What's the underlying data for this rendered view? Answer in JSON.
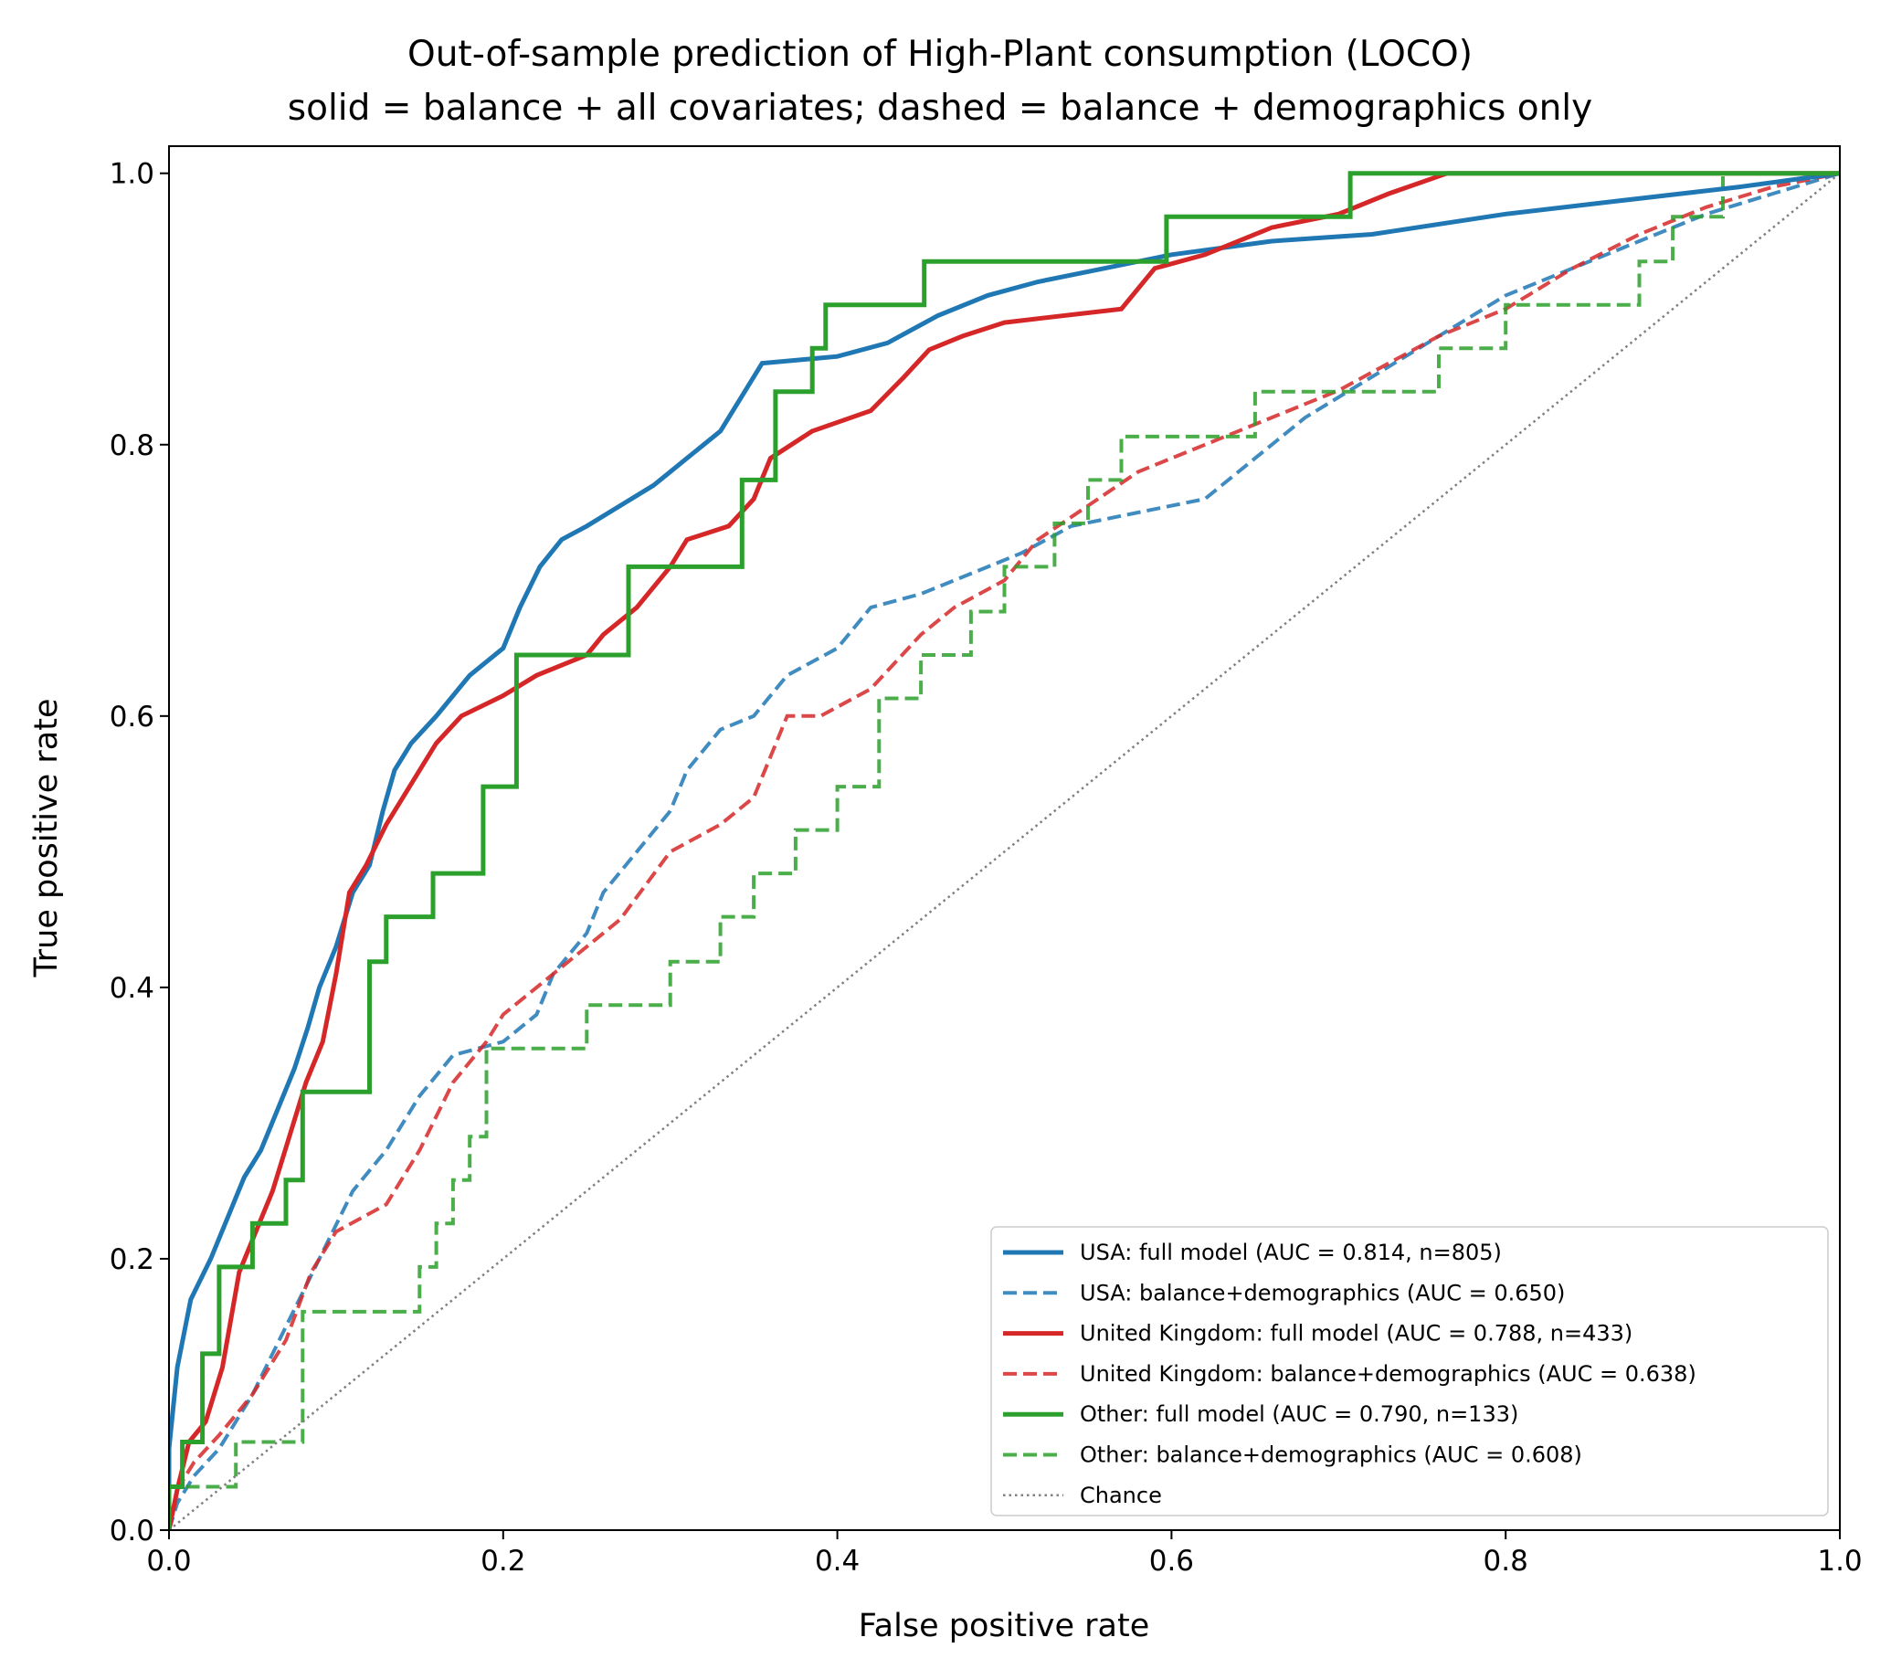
{
  "chart_data": {
    "type": "line",
    "title_lines": [
      "Out-of-sample prediction of High-Plant consumption (LOCO)",
      "solid = balance + all covariates; dashed = balance + demographics only"
    ],
    "xlabel": "False positive rate",
    "ylabel": "True positive rate",
    "xlim": [
      0,
      1
    ],
    "ylim": [
      0,
      1.02
    ],
    "xticks": [
      {
        "value": 0.0,
        "label": "0.0"
      },
      {
        "value": 0.2,
        "label": "0.2"
      },
      {
        "value": 0.4,
        "label": "0.4"
      },
      {
        "value": 0.6,
        "label": "0.6"
      },
      {
        "value": 0.8,
        "label": "0.8"
      },
      {
        "value": 1.0,
        "label": "1.0"
      }
    ],
    "yticks": [
      {
        "value": 0.0,
        "label": "0.0"
      },
      {
        "value": 0.2,
        "label": "0.2"
      },
      {
        "value": 0.4,
        "label": "0.4"
      },
      {
        "value": 0.6,
        "label": "0.6"
      },
      {
        "value": 0.8,
        "label": "0.8"
      },
      {
        "value": 1.0,
        "label": "1.0"
      }
    ],
    "grid": false,
    "legend_position": "lower-right",
    "series": [
      {
        "name": "USA: full model (AUC = 0.814, n=805)",
        "color": "#1f77b4",
        "style": "solid",
        "points": [
          [
            0,
            0
          ],
          [
            0,
            0.06
          ],
          [
            0.005,
            0.12
          ],
          [
            0.013,
            0.17
          ],
          [
            0.025,
            0.2
          ],
          [
            0.035,
            0.23
          ],
          [
            0.045,
            0.26
          ],
          [
            0.055,
            0.28
          ],
          [
            0.065,
            0.31
          ],
          [
            0.075,
            0.34
          ],
          [
            0.083,
            0.37
          ],
          [
            0.09,
            0.4
          ],
          [
            0.1,
            0.43
          ],
          [
            0.11,
            0.47
          ],
          [
            0.12,
            0.49
          ],
          [
            0.128,
            0.53
          ],
          [
            0.135,
            0.56
          ],
          [
            0.145,
            0.58
          ],
          [
            0.16,
            0.6
          ],
          [
            0.18,
            0.63
          ],
          [
            0.2,
            0.65
          ],
          [
            0.21,
            0.68
          ],
          [
            0.222,
            0.71
          ],
          [
            0.235,
            0.73
          ],
          [
            0.25,
            0.74
          ],
          [
            0.27,
            0.755
          ],
          [
            0.29,
            0.77
          ],
          [
            0.31,
            0.79
          ],
          [
            0.33,
            0.81
          ],
          [
            0.34,
            0.83
          ],
          [
            0.355,
            0.86
          ],
          [
            0.4,
            0.865
          ],
          [
            0.43,
            0.875
          ],
          [
            0.46,
            0.895
          ],
          [
            0.49,
            0.91
          ],
          [
            0.52,
            0.92
          ],
          [
            0.56,
            0.93
          ],
          [
            0.6,
            0.94
          ],
          [
            0.66,
            0.95
          ],
          [
            0.72,
            0.955
          ],
          [
            0.8,
            0.97
          ],
          [
            0.87,
            0.98
          ],
          [
            0.94,
            0.99
          ],
          [
            1,
            1
          ]
        ]
      },
      {
        "name": "USA: balance+demographics (AUC = 0.650)",
        "color": "#1f77b4",
        "style": "dashed",
        "points": [
          [
            0,
            0
          ],
          [
            0.005,
            0.02
          ],
          [
            0.015,
            0.04
          ],
          [
            0.03,
            0.06
          ],
          [
            0.05,
            0.1
          ],
          [
            0.07,
            0.15
          ],
          [
            0.09,
            0.2
          ],
          [
            0.11,
            0.25
          ],
          [
            0.13,
            0.28
          ],
          [
            0.15,
            0.32
          ],
          [
            0.17,
            0.35
          ],
          [
            0.2,
            0.36
          ],
          [
            0.22,
            0.38
          ],
          [
            0.23,
            0.41
          ],
          [
            0.25,
            0.44
          ],
          [
            0.26,
            0.47
          ],
          [
            0.28,
            0.5
          ],
          [
            0.3,
            0.53
          ],
          [
            0.31,
            0.56
          ],
          [
            0.33,
            0.59
          ],
          [
            0.35,
            0.6
          ],
          [
            0.37,
            0.63
          ],
          [
            0.4,
            0.65
          ],
          [
            0.42,
            0.68
          ],
          [
            0.45,
            0.69
          ],
          [
            0.48,
            0.705
          ],
          [
            0.51,
            0.72
          ],
          [
            0.54,
            0.74
          ],
          [
            0.58,
            0.75
          ],
          [
            0.62,
            0.76
          ],
          [
            0.65,
            0.79
          ],
          [
            0.68,
            0.82
          ],
          [
            0.72,
            0.85
          ],
          [
            0.76,
            0.88
          ],
          [
            0.8,
            0.91
          ],
          [
            0.84,
            0.93
          ],
          [
            0.88,
            0.95
          ],
          [
            0.92,
            0.97
          ],
          [
            0.96,
            0.985
          ],
          [
            1,
            1
          ]
        ]
      },
      {
        "name": "United Kingdom: full model (AUC = 0.788, n=433)",
        "color": "#d62728",
        "style": "solid",
        "points": [
          [
            0,
            0
          ],
          [
            0.005,
            0.03
          ],
          [
            0.012,
            0.065
          ],
          [
            0.022,
            0.08
          ],
          [
            0.032,
            0.12
          ],
          [
            0.042,
            0.19
          ],
          [
            0.052,
            0.22
          ],
          [
            0.062,
            0.25
          ],
          [
            0.072,
            0.29
          ],
          [
            0.082,
            0.33
          ],
          [
            0.092,
            0.36
          ],
          [
            0.1,
            0.41
          ],
          [
            0.108,
            0.47
          ],
          [
            0.118,
            0.49
          ],
          [
            0.13,
            0.52
          ],
          [
            0.145,
            0.55
          ],
          [
            0.16,
            0.58
          ],
          [
            0.175,
            0.6
          ],
          [
            0.2,
            0.615
          ],
          [
            0.22,
            0.63
          ],
          [
            0.25,
            0.645
          ],
          [
            0.26,
            0.66
          ],
          [
            0.28,
            0.68
          ],
          [
            0.3,
            0.71
          ],
          [
            0.31,
            0.73
          ],
          [
            0.335,
            0.74
          ],
          [
            0.35,
            0.76
          ],
          [
            0.36,
            0.79
          ],
          [
            0.385,
            0.81
          ],
          [
            0.42,
            0.825
          ],
          [
            0.44,
            0.85
          ],
          [
            0.455,
            0.87
          ],
          [
            0.475,
            0.88
          ],
          [
            0.5,
            0.89
          ],
          [
            0.57,
            0.9
          ],
          [
            0.59,
            0.93
          ],
          [
            0.62,
            0.94
          ],
          [
            0.66,
            0.96
          ],
          [
            0.7,
            0.97
          ],
          [
            0.73,
            0.985
          ],
          [
            0.765,
            1
          ],
          [
            1,
            1
          ]
        ]
      },
      {
        "name": "United Kingdom: balance+demographics (AUC = 0.638)",
        "color": "#d62728",
        "style": "dashed",
        "points": [
          [
            0,
            0
          ],
          [
            0.005,
            0.03
          ],
          [
            0.015,
            0.05
          ],
          [
            0.03,
            0.07
          ],
          [
            0.05,
            0.1
          ],
          [
            0.07,
            0.14
          ],
          [
            0.085,
            0.19
          ],
          [
            0.1,
            0.22
          ],
          [
            0.13,
            0.24
          ],
          [
            0.15,
            0.28
          ],
          [
            0.17,
            0.33
          ],
          [
            0.19,
            0.36
          ],
          [
            0.2,
            0.38
          ],
          [
            0.22,
            0.4
          ],
          [
            0.25,
            0.43
          ],
          [
            0.27,
            0.45
          ],
          [
            0.3,
            0.5
          ],
          [
            0.33,
            0.52
          ],
          [
            0.35,
            0.54
          ],
          [
            0.37,
            0.6
          ],
          [
            0.39,
            0.6
          ],
          [
            0.42,
            0.62
          ],
          [
            0.45,
            0.66
          ],
          [
            0.47,
            0.68
          ],
          [
            0.5,
            0.7
          ],
          [
            0.52,
            0.73
          ],
          [
            0.55,
            0.755
          ],
          [
            0.58,
            0.78
          ],
          [
            0.62,
            0.8
          ],
          [
            0.66,
            0.82
          ],
          [
            0.7,
            0.84
          ],
          [
            0.73,
            0.86
          ],
          [
            0.76,
            0.88
          ],
          [
            0.8,
            0.9
          ],
          [
            0.84,
            0.93
          ],
          [
            0.88,
            0.955
          ],
          [
            0.92,
            0.975
          ],
          [
            0.96,
            0.99
          ],
          [
            1,
            1
          ]
        ]
      },
      {
        "name": "Other: full model (AUC = 0.790, n=133)",
        "color": "#2ca02c",
        "style": "solid",
        "points": [
          [
            0,
            0
          ],
          [
            0,
            0.032
          ],
          [
            0.008,
            0.032
          ],
          [
            0.008,
            0.065
          ],
          [
            0.02,
            0.065
          ],
          [
            0.02,
            0.13
          ],
          [
            0.03,
            0.13
          ],
          [
            0.03,
            0.194
          ],
          [
            0.05,
            0.194
          ],
          [
            0.05,
            0.226
          ],
          [
            0.07,
            0.226
          ],
          [
            0.07,
            0.258
          ],
          [
            0.08,
            0.258
          ],
          [
            0.08,
            0.323
          ],
          [
            0.12,
            0.323
          ],
          [
            0.12,
            0.419
          ],
          [
            0.13,
            0.419
          ],
          [
            0.13,
            0.452
          ],
          [
            0.158,
            0.452
          ],
          [
            0.158,
            0.484
          ],
          [
            0.188,
            0.484
          ],
          [
            0.188,
            0.548
          ],
          [
            0.208,
            0.548
          ],
          [
            0.208,
            0.645
          ],
          [
            0.275,
            0.645
          ],
          [
            0.275,
            0.71
          ],
          [
            0.343,
            0.71
          ],
          [
            0.343,
            0.774
          ],
          [
            0.363,
            0.774
          ],
          [
            0.363,
            0.839
          ],
          [
            0.385,
            0.839
          ],
          [
            0.385,
            0.871
          ],
          [
            0.393,
            0.871
          ],
          [
            0.393,
            0.903
          ],
          [
            0.452,
            0.903
          ],
          [
            0.452,
            0.935
          ],
          [
            0.597,
            0.935
          ],
          [
            0.597,
            0.968
          ],
          [
            0.707,
            0.968
          ],
          [
            0.707,
            1
          ],
          [
            1,
            1
          ]
        ]
      },
      {
        "name": "Other: balance+demographics (AUC = 0.608)",
        "color": "#2ca02c",
        "style": "dashed",
        "points": [
          [
            0,
            0
          ],
          [
            0,
            0.032
          ],
          [
            0.04,
            0.032
          ],
          [
            0.04,
            0.065
          ],
          [
            0.08,
            0.065
          ],
          [
            0.08,
            0.161
          ],
          [
            0.15,
            0.161
          ],
          [
            0.15,
            0.194
          ],
          [
            0.16,
            0.194
          ],
          [
            0.16,
            0.226
          ],
          [
            0.17,
            0.226
          ],
          [
            0.17,
            0.258
          ],
          [
            0.18,
            0.258
          ],
          [
            0.18,
            0.29
          ],
          [
            0.19,
            0.29
          ],
          [
            0.19,
            0.355
          ],
          [
            0.25,
            0.355
          ],
          [
            0.25,
            0.387
          ],
          [
            0.3,
            0.387
          ],
          [
            0.3,
            0.419
          ],
          [
            0.33,
            0.419
          ],
          [
            0.33,
            0.452
          ],
          [
            0.35,
            0.452
          ],
          [
            0.35,
            0.484
          ],
          [
            0.375,
            0.484
          ],
          [
            0.375,
            0.516
          ],
          [
            0.4,
            0.516
          ],
          [
            0.4,
            0.548
          ],
          [
            0.425,
            0.548
          ],
          [
            0.425,
            0.613
          ],
          [
            0.45,
            0.613
          ],
          [
            0.45,
            0.645
          ],
          [
            0.48,
            0.645
          ],
          [
            0.48,
            0.677
          ],
          [
            0.5,
            0.677
          ],
          [
            0.5,
            0.71
          ],
          [
            0.53,
            0.71
          ],
          [
            0.53,
            0.742
          ],
          [
            0.55,
            0.742
          ],
          [
            0.55,
            0.774
          ],
          [
            0.57,
            0.774
          ],
          [
            0.57,
            0.806
          ],
          [
            0.65,
            0.806
          ],
          [
            0.65,
            0.839
          ],
          [
            0.76,
            0.839
          ],
          [
            0.76,
            0.871
          ],
          [
            0.8,
            0.871
          ],
          [
            0.8,
            0.903
          ],
          [
            0.88,
            0.903
          ],
          [
            0.88,
            0.935
          ],
          [
            0.9,
            0.935
          ],
          [
            0.9,
            0.968
          ],
          [
            0.93,
            0.968
          ],
          [
            0.93,
            1
          ],
          [
            1,
            1
          ]
        ]
      },
      {
        "name": "Chance",
        "color": "#808080",
        "style": "dotted",
        "points": [
          [
            0,
            0
          ],
          [
            1,
            1
          ]
        ]
      }
    ]
  }
}
